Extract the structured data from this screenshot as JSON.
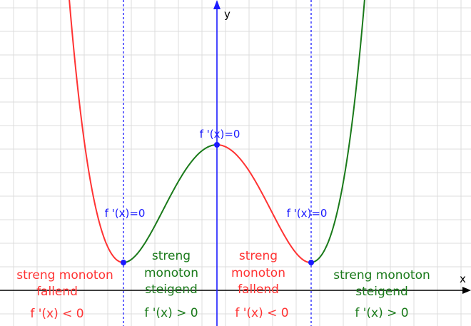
{
  "axes": {
    "x_label": "x",
    "y_label": "y"
  },
  "colors": {
    "decreasing": "#ff3333",
    "increasing": "#1a7a1a",
    "marker": "#1a1aff",
    "axis": "#000000",
    "y_axis": "#1a1aff",
    "grid": "#dcdcdc"
  },
  "critical_points": [
    {
      "label": "f '(x)=0"
    },
    {
      "label": "f '(x)=0"
    },
    {
      "label": "f '(x)=0"
    }
  ],
  "regions": [
    {
      "line1": "streng monoton",
      "line2": "fallend",
      "derivative": "f '(x) < 0",
      "trend": "decreasing"
    },
    {
      "line1": "streng",
      "line2": "monoton",
      "line3": "steigend",
      "derivative": "f '(x) > 0",
      "trend": "increasing"
    },
    {
      "line1": "streng",
      "line2": "monoton",
      "line3": "fallend",
      "derivative": "f '(x) < 0",
      "trend": "decreasing"
    },
    {
      "line1": "streng monoton",
      "line2": "steigend",
      "derivative": "f '(x) > 0",
      "trend": "increasing"
    }
  ]
}
